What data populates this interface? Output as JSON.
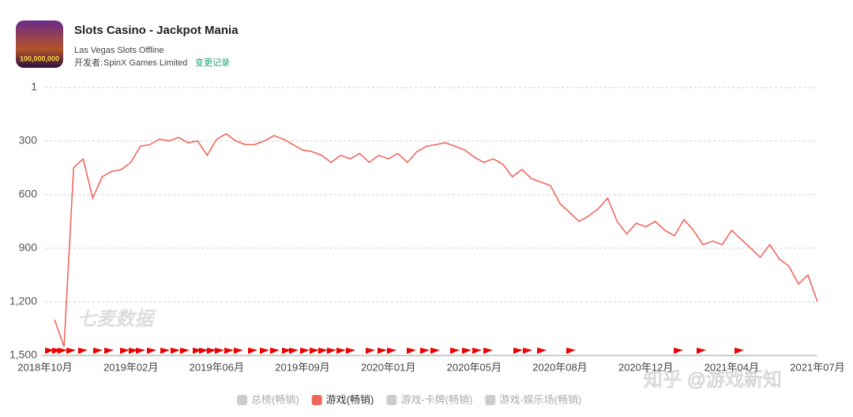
{
  "header": {
    "title": "Slots Casino - Jackpot Mania",
    "subtitle": "Las Vegas Slots Offline",
    "developer_label": "开发者:",
    "developer": "SpinX Games Limited",
    "changelog": "变更记录",
    "icon_text": "100,000,000"
  },
  "watermark": "七麦数据",
  "credit": "知乎 @游戏新知",
  "chart_data": {
    "type": "line",
    "categories": [
      "2018年10月",
      null,
      null,
      null,
      null,
      null,
      null,
      null,
      null,
      "2019年02月",
      null,
      null,
      null,
      null,
      null,
      null,
      null,
      null,
      "2019年06月",
      null,
      null,
      null,
      null,
      null,
      null,
      null,
      null,
      "2019年09月",
      null,
      null,
      null,
      null,
      null,
      null,
      null,
      null,
      "2020年01月",
      null,
      null,
      null,
      null,
      null,
      null,
      null,
      null,
      "2020年05月",
      null,
      null,
      null,
      null,
      null,
      null,
      null,
      null,
      "2020年08月",
      null,
      null,
      null,
      null,
      null,
      null,
      null,
      null,
      "2020年12月",
      null,
      null,
      null,
      null,
      null,
      null,
      null,
      null,
      "2021年04月",
      null,
      null,
      null,
      null,
      null,
      null,
      null,
      null,
      "2021年07月"
    ],
    "series": [
      {
        "name": "游戏(畅销)",
        "color": "#f0665d",
        "values": [
          null,
          1300,
          1450,
          450,
          400,
          620,
          500,
          470,
          460,
          420,
          330,
          320,
          290,
          300,
          280,
          310,
          300,
          380,
          290,
          260,
          300,
          320,
          320,
          300,
          270,
          290,
          320,
          350,
          360,
          380,
          420,
          380,
          400,
          370,
          420,
          380,
          400,
          370,
          420,
          360,
          330,
          320,
          310,
          330,
          350,
          390,
          420,
          400,
          430,
          500,
          460,
          510,
          530,
          550,
          650,
          700,
          750,
          720,
          680,
          620,
          750,
          820,
          760,
          780,
          750,
          800,
          830,
          740,
          800,
          880,
          860,
          880,
          800,
          850,
          900,
          950,
          880,
          960,
          1000,
          1100,
          1050,
          1200
        ]
      }
    ],
    "inactive_series": [
      {
        "name": "总榜(畅销)",
        "color": "#cccccc"
      },
      {
        "name": "游戏-卡牌(畅销)",
        "color": "#cccccc"
      },
      {
        "name": "游戏-娱乐场(畅销)",
        "color": "#cccccc"
      }
    ],
    "ylim": [
      1,
      1500
    ],
    "y_inverted": true,
    "yticks": [
      1,
      300,
      600,
      900,
      {
        "value": 1200,
        "label": "1,200"
      },
      {
        "value": 1500,
        "label": "1,500"
      }
    ],
    "grid": true
  }
}
